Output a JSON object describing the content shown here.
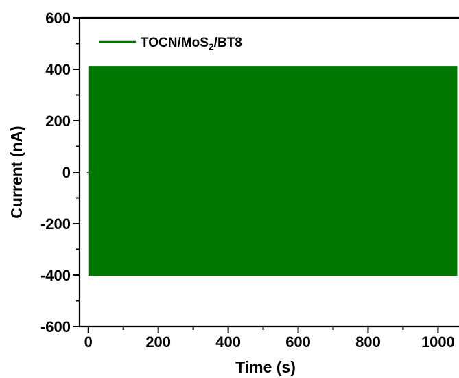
{
  "chart_data": {
    "type": "line",
    "title": "",
    "xlabel": "Time (s)",
    "ylabel": "Current (nA)",
    "xlim": [
      -25,
      1060
    ],
    "ylim": [
      -600,
      600
    ],
    "x_ticks": [
      0,
      200,
      400,
      600,
      800,
      1000
    ],
    "x_tick_labels": [
      "0",
      "200",
      "400",
      "600",
      "800",
      "1000"
    ],
    "y_ticks": [
      -600,
      -400,
      -200,
      0,
      200,
      400,
      600
    ],
    "y_tick_labels": [
      "-600",
      "-400",
      "-200",
      "0",
      "200",
      "400",
      "600"
    ],
    "grid": false,
    "legend_position": "top-left",
    "legend": {
      "base": "TOCN/MoS",
      "subscript": "2",
      "suffix": "/BT8"
    },
    "series": [
      {
        "name": "TOCN/MoS2/BT8",
        "color": "#007700",
        "x_range": [
          0,
          1055
        ],
        "upper_envelope": 413,
        "lower_envelope": -403,
        "baseline": 0
      }
    ]
  }
}
